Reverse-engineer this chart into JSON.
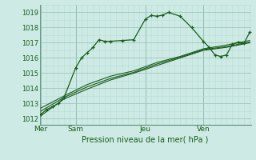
{
  "bg_color": "#ceeae4",
  "grid_color_major": "#9dc8be",
  "grid_color_minor": "#b8ddd8",
  "line_color": "#1a5c1a",
  "title": "Pression niveau de la mer( hPa )",
  "ylabel_ticks": [
    1012,
    1013,
    1014,
    1015,
    1016,
    1017,
    1018,
    1019
  ],
  "day_labels": [
    "Mer",
    "Sam",
    "Jeu",
    "Ven"
  ],
  "day_positions": [
    0,
    3,
    9,
    14
  ],
  "ylim": [
    1011.6,
    1019.5
  ],
  "xlim": [
    -0.1,
    18.1
  ],
  "line1_x": [
    0,
    0.5,
    1,
    1.5,
    2,
    3,
    3.5,
    4,
    4.5,
    5,
    5.5,
    6,
    7,
    8,
    9,
    9.5,
    10,
    10.5,
    11,
    12,
    13,
    14,
    14.5,
    15,
    15.5,
    16,
    16.5,
    17,
    17.5,
    18
  ],
  "line1_y": [
    1012.3,
    1012.6,
    1012.8,
    1013.0,
    1013.4,
    1015.35,
    1016.0,
    1016.35,
    1016.7,
    1017.2,
    1017.1,
    1017.1,
    1017.15,
    1017.2,
    1018.55,
    1018.8,
    1018.75,
    1018.82,
    1019.0,
    1018.75,
    1018.0,
    1017.1,
    1016.7,
    1016.2,
    1016.1,
    1016.2,
    1016.9,
    1017.05,
    1016.95,
    1017.7
  ],
  "line2_x": [
    0,
    2,
    4,
    6,
    8,
    10,
    12,
    14,
    16,
    18
  ],
  "line2_y": [
    1012.2,
    1013.3,
    1013.95,
    1014.55,
    1015.0,
    1015.5,
    1016.0,
    1016.5,
    1016.7,
    1017.0
  ],
  "line3_x": [
    0,
    2,
    4,
    6,
    8,
    10,
    12,
    14,
    16,
    18
  ],
  "line3_y": [
    1012.5,
    1013.4,
    1014.1,
    1014.65,
    1015.05,
    1015.6,
    1016.05,
    1016.55,
    1016.75,
    1017.05
  ],
  "line4_x": [
    0,
    2,
    4,
    6,
    8,
    10,
    12,
    14,
    16,
    18
  ],
  "line4_y": [
    1012.7,
    1013.5,
    1014.25,
    1014.8,
    1015.15,
    1015.7,
    1016.1,
    1016.6,
    1016.85,
    1017.15
  ],
  "vline_positions": [
    0,
    3,
    9,
    14
  ]
}
